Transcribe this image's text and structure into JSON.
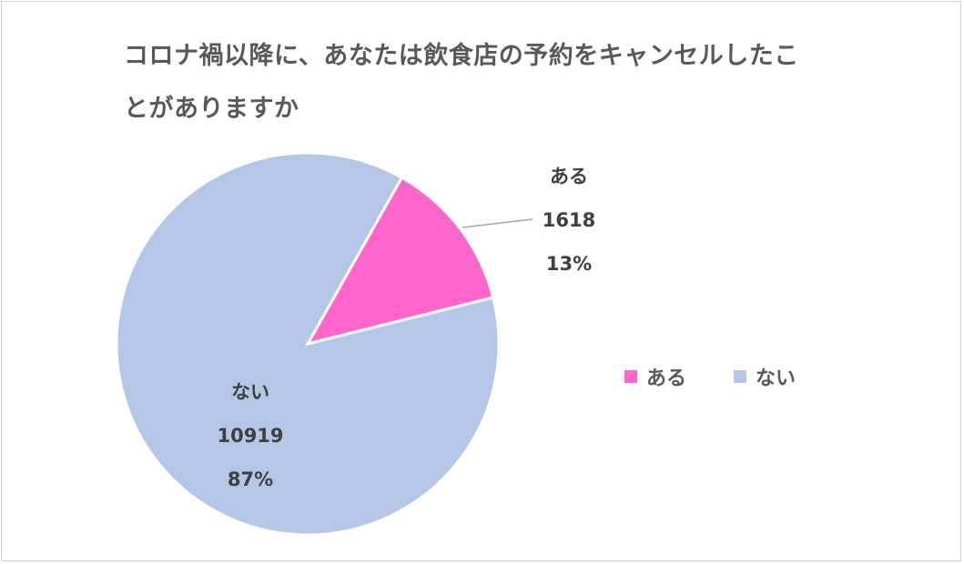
{
  "chart_data": {
    "type": "pie",
    "title": "コロナ禍以降に、あなたは飲食店の予約をキャンセルしたことがありますか",
    "categories": [
      "ある",
      "ない"
    ],
    "values": [
      1618,
      10919
    ],
    "percentages": [
      "13%",
      "87%"
    ],
    "colors": [
      "#FF66CC",
      "#B4C7E7"
    ],
    "legend_position": "right"
  },
  "title": {
    "line1": "コロナ禍以降に、あなたは飲食店の予約をキャンセルしたこ",
    "line2": "とがありますか"
  },
  "labels": {
    "aru": {
      "name": "ある",
      "value": "1618",
      "pct": "13%"
    },
    "nai": {
      "name": "ない",
      "value": "10919",
      "pct": "87%"
    }
  },
  "legend": [
    {
      "label": "ある",
      "color": "#FF66CC"
    },
    {
      "label": "ない",
      "color": "#B4C7E7"
    }
  ]
}
